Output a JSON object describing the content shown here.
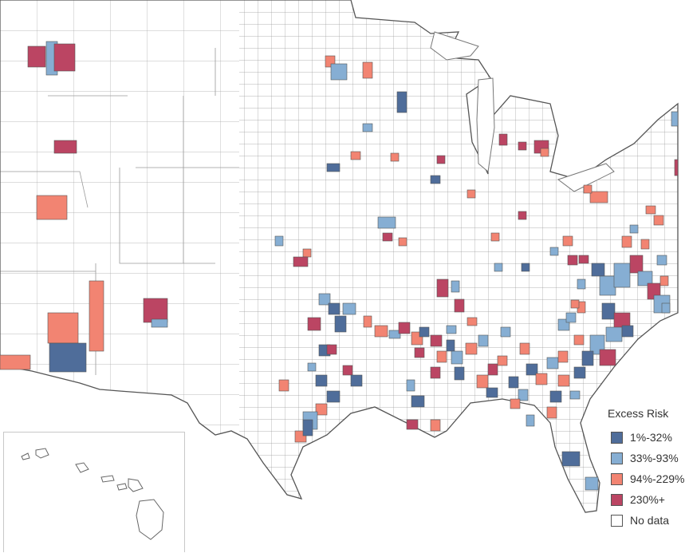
{
  "map": {
    "subject": "Excess risk by county, contiguous United States with Hawaii inset",
    "colors": {
      "bin1": "#4f6d9a",
      "bin2": "#86aed3",
      "bin3": "#f28472",
      "bin4": "#bb4563",
      "no_data": "#ffffff",
      "border": "#5a5a5a"
    }
  },
  "legend": {
    "title": "Excess Risk",
    "items": [
      {
        "label": "1%-32%",
        "color": "#4f6d9a"
      },
      {
        "label": "33%-93%",
        "color": "#86aed3"
      },
      {
        "label": "94%-229%",
        "color": "#f28472"
      },
      {
        "label": "230%+",
        "color": "#bb4563"
      },
      {
        "label": "No data",
        "color": "#ffffff"
      }
    ]
  }
}
